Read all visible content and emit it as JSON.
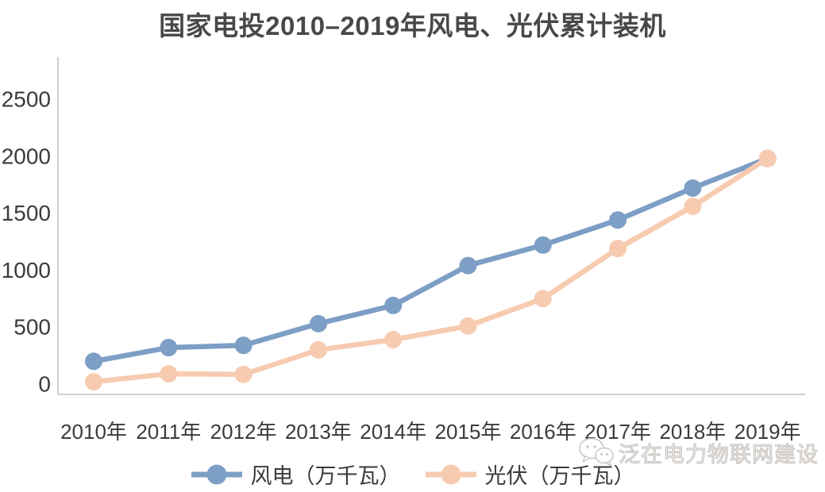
{
  "title": "国家电投2010–2019年风电、光伏累计装机",
  "watermark": {
    "text": "泛在电力物联网建设",
    "icon": "wechat-logo"
  },
  "colors": {
    "axis": "#c2c2c2",
    "tick_text": "#3e3a39",
    "title_text": "#4a4747",
    "watermark_text": "#ccc8c5"
  },
  "chart_data": {
    "type": "line",
    "categories": [
      "2010年",
      "2011年",
      "2012年",
      "2013年",
      "2014年",
      "2015年",
      "2016年",
      "2017年",
      "2018年",
      "2019年"
    ],
    "series": [
      {
        "name": "风电（万千瓦）",
        "color": "#7d9ec5",
        "values": [
          200,
          320,
          340,
          530,
          690,
          1040,
          1220,
          1440,
          1720,
          1980
        ]
      },
      {
        "name": "光伏（万千瓦）",
        "color": "#f7cbb0",
        "values": [
          20,
          90,
          85,
          300,
          390,
          510,
          750,
          1190,
          1560,
          1980
        ]
      }
    ],
    "xlabel": "",
    "ylabel": "",
    "ylim": [
      0,
      2500
    ],
    "yticks": [
      0,
      500,
      1000,
      1500,
      2000,
      2500
    ],
    "grid": false,
    "legend_position": "bottom",
    "marker": "circle"
  }
}
